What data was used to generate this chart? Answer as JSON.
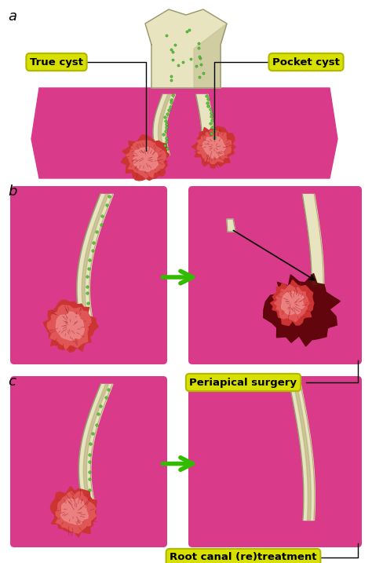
{
  "bg_color": "#ffffff",
  "pink_tissue": "#d93a8a",
  "pink_light": "#e060a0",
  "tooth_ivory": "#c8c498",
  "tooth_light": "#e8e4c0",
  "tooth_dark": "#989870",
  "tooth_shadow": "#b0a870",
  "granuloma_outer": "#cc3333",
  "granuloma_mid": "#e05555",
  "granuloma_inner": "#ee8888",
  "blood_color": "#550000",
  "blood_mid": "#7a0000",
  "green_dot": "#55cc33",
  "green_dot_edge": "#337722",
  "label_bg": "#d8e000",
  "label_border": "#b0b800",
  "arrow_green": "#33bb00",
  "text_color": "#000000",
  "section_label_size": 13,
  "label_fontsize": 9,
  "panel_a_label": "a",
  "panel_b_label": "b",
  "panel_c_label": "c",
  "true_cyst_label": "True cyst",
  "pocket_cyst_label": "Pocket cyst",
  "periapical_surgery_label": "Periapical surgery",
  "root_canal_label": "Root canal (re)treatment",
  "figw": 4.74,
  "figh": 7.17,
  "dpi": 100
}
